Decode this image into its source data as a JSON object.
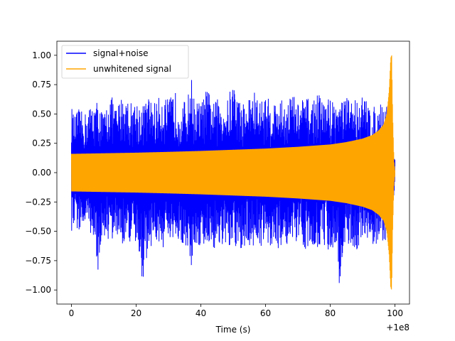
{
  "chart_data": {
    "type": "line",
    "title": "",
    "xlabel": "Time (s)",
    "ylabel": "",
    "x_offset_label": "+1e8",
    "xlim": [
      -4.5,
      104.5
    ],
    "ylim": [
      -1.12,
      1.12
    ],
    "xticks": [
      0,
      20,
      40,
      60,
      80,
      100
    ],
    "xtick_labels": [
      "0",
      "20",
      "40",
      "60",
      "80",
      "100"
    ],
    "yticks": [
      -1.0,
      -0.75,
      -0.5,
      -0.25,
      0.0,
      0.25,
      0.5,
      0.75,
      1.0
    ],
    "ytick_labels": [
      "−1.00",
      "−0.75",
      "−0.50",
      "−0.25",
      "0.00",
      "0.25",
      "0.50",
      "0.75",
      "1.00"
    ],
    "grid": false,
    "legend_position": "top-left",
    "series": [
      {
        "name": "signal+noise",
        "color": "#0000ff",
        "x_range": [
          0,
          100
        ],
        "upper_envelope": [
          [
            0,
            0.57
          ],
          [
            1,
            0.48
          ],
          [
            2,
            0.55
          ],
          [
            4,
            0.5
          ],
          [
            6,
            0.58
          ],
          [
            8,
            0.62
          ],
          [
            10,
            0.5
          ],
          [
            12,
            0.68
          ],
          [
            14,
            0.55
          ],
          [
            16,
            0.7
          ],
          [
            18,
            0.6
          ],
          [
            20,
            0.62
          ],
          [
            22,
            0.58
          ],
          [
            24,
            0.65
          ],
          [
            26,
            0.6
          ],
          [
            28,
            0.68
          ],
          [
            30,
            0.62
          ],
          [
            32,
            0.7
          ],
          [
            34,
            0.58
          ],
          [
            36,
            0.65
          ],
          [
            37,
            0.84
          ],
          [
            38,
            0.62
          ],
          [
            40,
            0.6
          ],
          [
            42,
            0.72
          ],
          [
            44,
            0.6
          ],
          [
            46,
            0.65
          ],
          [
            48,
            0.6
          ],
          [
            50,
            0.8
          ],
          [
            52,
            0.62
          ],
          [
            54,
            0.6
          ],
          [
            56,
            0.72
          ],
          [
            58,
            0.62
          ],
          [
            60,
            0.66
          ],
          [
            62,
            0.6
          ],
          [
            64,
            0.64
          ],
          [
            66,
            0.6
          ],
          [
            68,
            0.7
          ],
          [
            70,
            0.6
          ],
          [
            72,
            0.65
          ],
          [
            74,
            0.62
          ],
          [
            76,
            0.68
          ],
          [
            78,
            0.62
          ],
          [
            80,
            0.65
          ],
          [
            82,
            0.6
          ],
          [
            84,
            0.66
          ],
          [
            86,
            0.63
          ],
          [
            88,
            0.65
          ],
          [
            90,
            0.66
          ],
          [
            92,
            0.6
          ],
          [
            94,
            0.55
          ],
          [
            96,
            0.6
          ],
          [
            97,
            0.62
          ],
          [
            98,
            0.55
          ],
          [
            99,
            0.4
          ],
          [
            100,
            0.12
          ]
        ],
        "lower_envelope": [
          [
            0,
            -0.55
          ],
          [
            1,
            -0.45
          ],
          [
            2,
            -0.5
          ],
          [
            4,
            -0.48
          ],
          [
            6,
            -0.52
          ],
          [
            8,
            -0.87
          ],
          [
            10,
            -0.55
          ],
          [
            12,
            -0.6
          ],
          [
            14,
            -0.55
          ],
          [
            16,
            -0.62
          ],
          [
            18,
            -0.6
          ],
          [
            20,
            -0.65
          ],
          [
            22,
            -0.92
          ],
          [
            24,
            -0.65
          ],
          [
            26,
            -0.6
          ],
          [
            28,
            -0.66
          ],
          [
            30,
            -0.6
          ],
          [
            32,
            -0.65
          ],
          [
            34,
            -0.6
          ],
          [
            36,
            -0.65
          ],
          [
            37,
            -0.87
          ],
          [
            38,
            -0.62
          ],
          [
            40,
            -0.65
          ],
          [
            42,
            -0.6
          ],
          [
            44,
            -0.66
          ],
          [
            46,
            -0.62
          ],
          [
            48,
            -0.68
          ],
          [
            50,
            -0.65
          ],
          [
            52,
            -0.7
          ],
          [
            54,
            -0.62
          ],
          [
            56,
            -0.65
          ],
          [
            58,
            -0.6
          ],
          [
            60,
            -0.68
          ],
          [
            62,
            -0.62
          ],
          [
            64,
            -0.65
          ],
          [
            66,
            -0.6
          ],
          [
            68,
            -0.65
          ],
          [
            70,
            -0.62
          ],
          [
            72,
            -0.66
          ],
          [
            74,
            -0.6
          ],
          [
            76,
            -0.65
          ],
          [
            78,
            -0.62
          ],
          [
            80,
            -0.68
          ],
          [
            82,
            -0.62
          ],
          [
            83,
            -1.03
          ],
          [
            84,
            -0.65
          ],
          [
            86,
            -0.62
          ],
          [
            88,
            -0.66
          ],
          [
            90,
            -0.62
          ],
          [
            92,
            -0.6
          ],
          [
            94,
            -0.62
          ],
          [
            96,
            -0.6
          ],
          [
            97,
            -0.62
          ],
          [
            98,
            -0.55
          ],
          [
            99,
            -0.45
          ],
          [
            100,
            -0.1
          ]
        ]
      },
      {
        "name": "unwhitened signal",
        "color": "#ffa500",
        "x_range": [
          0,
          100
        ],
        "amplitude_envelope": [
          [
            0,
            0.16
          ],
          [
            10,
            0.165
          ],
          [
            20,
            0.17
          ],
          [
            30,
            0.177
          ],
          [
            40,
            0.185
          ],
          [
            50,
            0.195
          ],
          [
            60,
            0.205
          ],
          [
            70,
            0.22
          ],
          [
            80,
            0.24
          ],
          [
            85,
            0.26
          ],
          [
            90,
            0.29
          ],
          [
            93,
            0.32
          ],
          [
            95,
            0.36
          ],
          [
            96.5,
            0.41
          ],
          [
            97.5,
            0.5
          ],
          [
            98.2,
            0.7
          ],
          [
            98.7,
            0.98
          ],
          [
            99,
            1.0
          ],
          [
            99.3,
            0.5
          ],
          [
            99.7,
            0.1
          ],
          [
            100,
            0.02
          ]
        ]
      }
    ]
  }
}
